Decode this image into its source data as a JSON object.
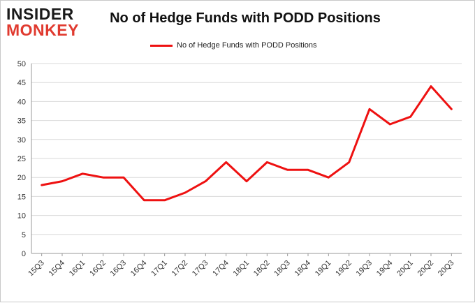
{
  "logo": {
    "line1": "INSIDER",
    "line2": "MONKEY"
  },
  "chart_data": {
    "type": "line",
    "title": "No of Hedge Funds with PODD Positions",
    "xlabel": "",
    "ylabel": "",
    "categories": [
      "15Q3",
      "15Q4",
      "16Q1",
      "16Q2",
      "16Q3",
      "16Q4",
      "17Q1",
      "17Q2",
      "17Q3",
      "17Q4",
      "18Q1",
      "18Q2",
      "18Q3",
      "18Q4",
      "19Q1",
      "19Q2",
      "19Q3",
      "19Q4",
      "20Q1",
      "20Q2",
      "20Q3"
    ],
    "series": [
      {
        "name": "No of Hedge Funds with PODD Positions",
        "values": [
          18,
          19,
          21,
          20,
          20,
          14,
          14,
          16,
          19,
          24,
          19,
          24,
          22,
          22,
          20,
          24,
          38,
          34,
          36,
          44,
          38
        ],
        "color": "#ee1111"
      }
    ],
    "ylim": [
      0,
      50
    ],
    "yticks": [
      0,
      5,
      10,
      15,
      20,
      25,
      30,
      35,
      40,
      45,
      50
    ],
    "grid": true,
    "legend": "top-center"
  }
}
